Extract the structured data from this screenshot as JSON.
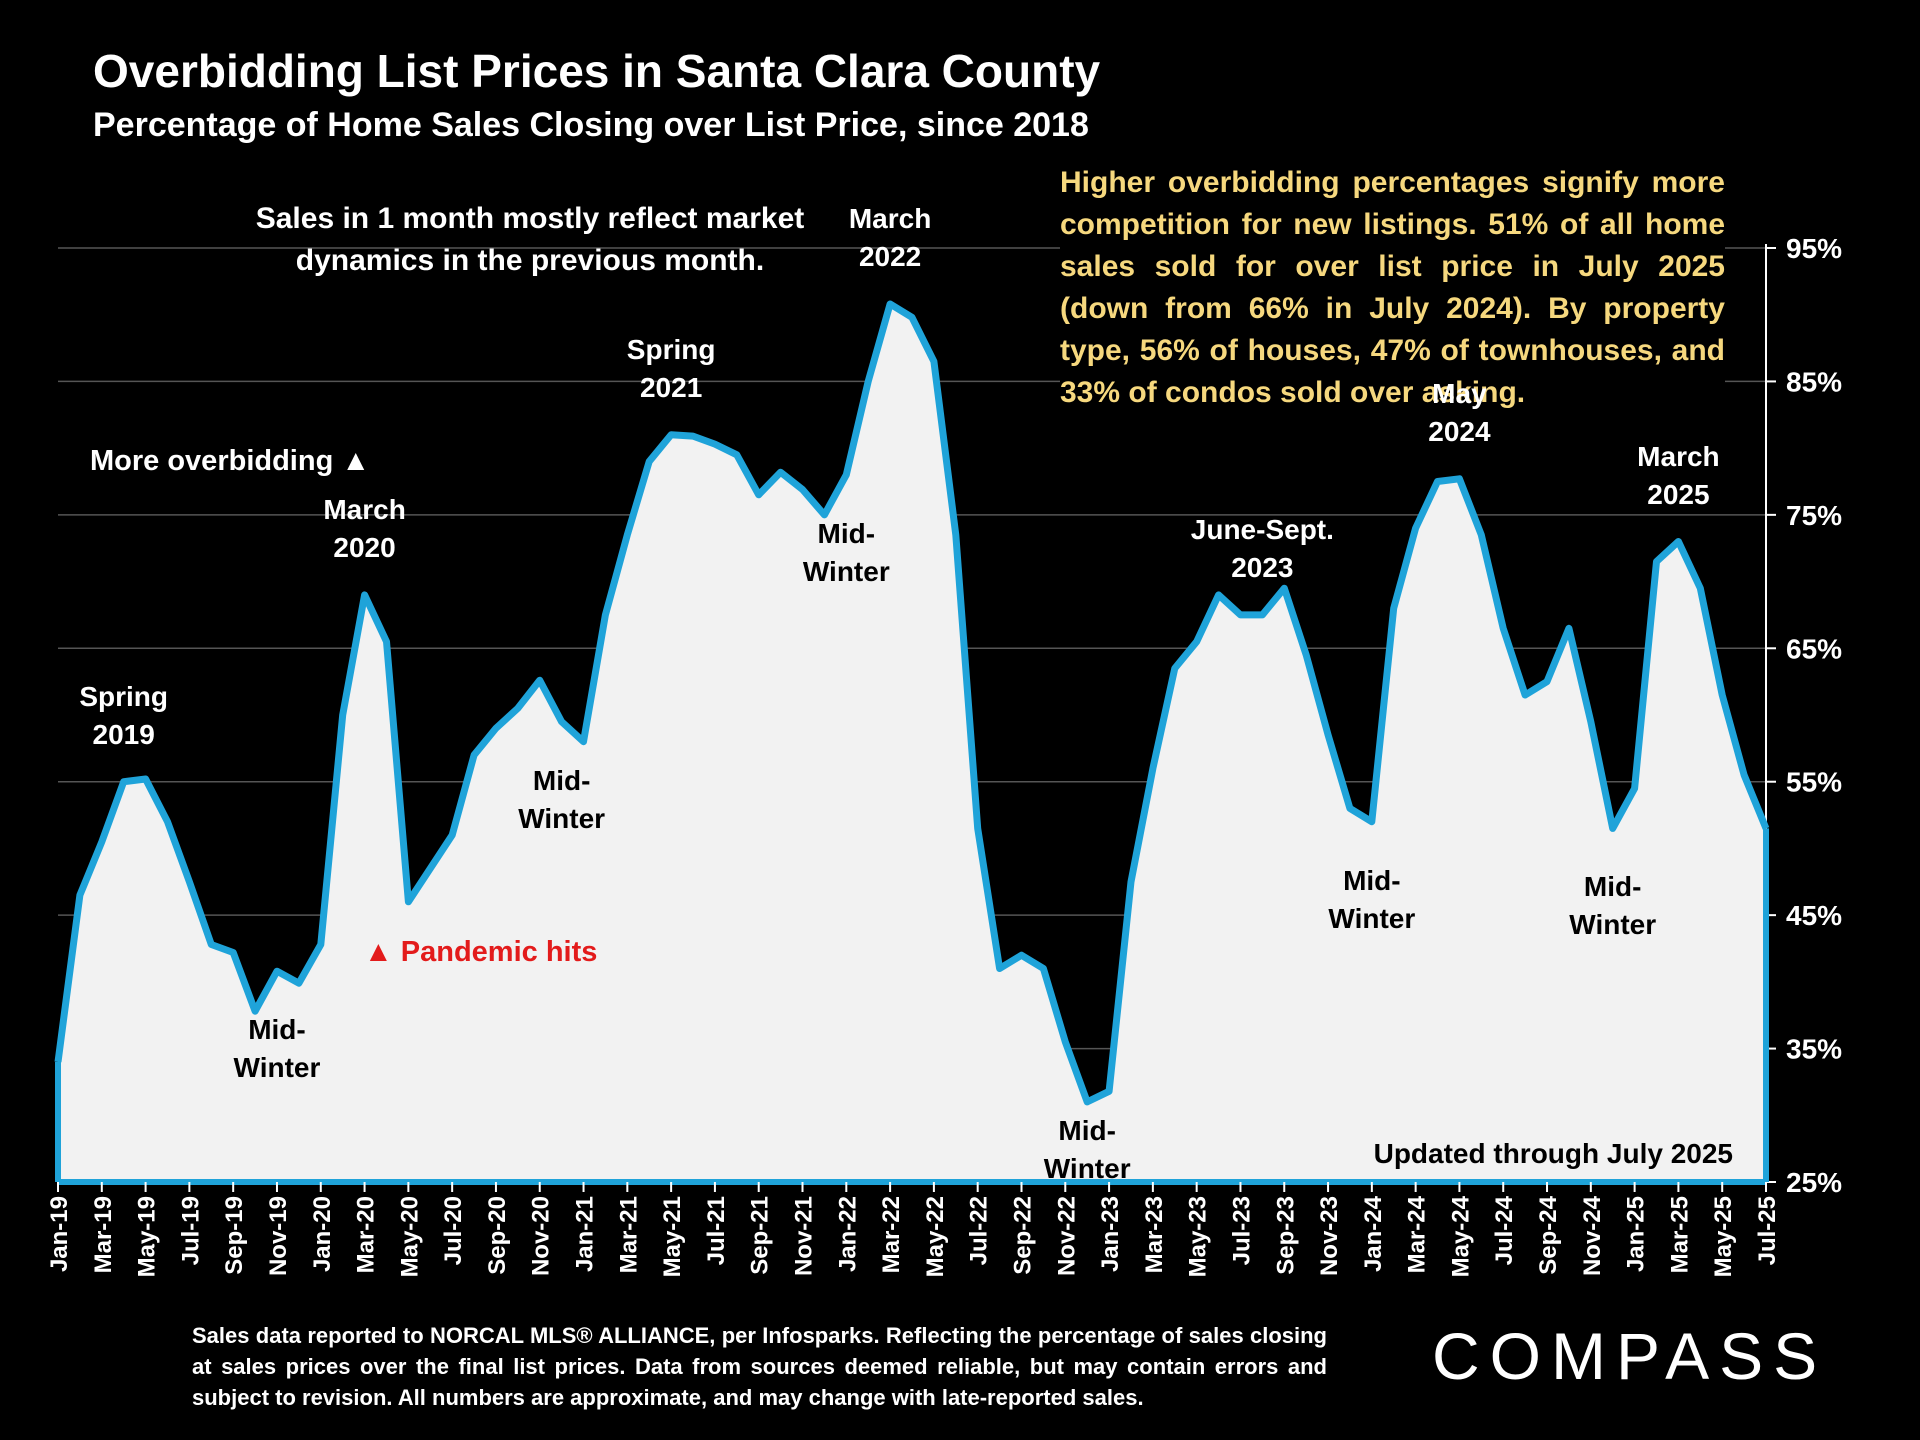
{
  "title": "Overbidding List Prices in Santa Clara County",
  "subtitle": "Percentage of Home Sales Closing over List Price, since 2018",
  "note_left": "Sales in 1 month mostly reflect market dynamics in the previous month.",
  "note_right": "Higher overbidding percentages signify more competition for new listings. 51% of all home sales sold for over list price in July 2025 (down from 66% in July 2024). By property type, 56% of houses, 47% of townhouses, and 33% of condos sold over asking.",
  "more_overbidding": "More overbidding ▲",
  "pandemic_label": "▲ Pandemic hits",
  "updated": "Updated through July 2025",
  "footnote": "Sales data reported to NORCAL MLS® ALLIANCE, per Infosparks. Reflecting the percentage of sales closing at sales prices over the final list prices. Data from sources deemed reliable, but may contain errors and subject to revision. All numbers are approximate, and may change with late-reported sales.",
  "logo": "COMPASS",
  "colors": {
    "line": "#1fa3d9",
    "fill": "#f2f2f2",
    "note": "#f6d87e",
    "pandemic": "#e31b1b",
    "grid": "#555555"
  },
  "chart_data": {
    "type": "area",
    "title": "Overbidding List Prices in Santa Clara County",
    "subtitle": "Percentage of Home Sales Closing over List Price, since 2018",
    "x": [
      "Jan-19",
      "Feb-19",
      "Mar-19",
      "Apr-19",
      "May-19",
      "Jun-19",
      "Jul-19",
      "Aug-19",
      "Sep-19",
      "Oct-19",
      "Nov-19",
      "Dec-19",
      "Jan-20",
      "Feb-20",
      "Mar-20",
      "Apr-20",
      "May-20",
      "Jun-20",
      "Jul-20",
      "Aug-20",
      "Sep-20",
      "Oct-20",
      "Nov-20",
      "Dec-20",
      "Jan-21",
      "Feb-21",
      "Mar-21",
      "Apr-21",
      "May-21",
      "Jun-21",
      "Jul-21",
      "Aug-21",
      "Sep-21",
      "Oct-21",
      "Nov-21",
      "Dec-21",
      "Jan-22",
      "Feb-22",
      "Mar-22",
      "Apr-22",
      "May-22",
      "Jun-22",
      "Jul-22",
      "Aug-22",
      "Sep-22",
      "Oct-22",
      "Nov-22",
      "Dec-22",
      "Jan-23",
      "Feb-23",
      "Mar-23",
      "Apr-23",
      "May-23",
      "Jun-23",
      "Jul-23",
      "Aug-23",
      "Sep-23",
      "Oct-23",
      "Nov-23",
      "Dec-23",
      "Jan-24",
      "Feb-24",
      "Mar-24",
      "Apr-24",
      "May-24",
      "Jun-24",
      "Jul-24",
      "Aug-24",
      "Sep-24",
      "Oct-24",
      "Nov-24",
      "Dec-24",
      "Jan-25",
      "Feb-25",
      "Mar-25",
      "Apr-25",
      "May-25",
      "Jun-25",
      "Jul-25"
    ],
    "series": [
      {
        "values": [
          34,
          46.5,
          50.5,
          55,
          55.2,
          52,
          47.5,
          42.8,
          42.2,
          37.8,
          40.8,
          39.9,
          42.8,
          60,
          69,
          65.5,
          46,
          48.5,
          51,
          57,
          59,
          60.5,
          62.6,
          59.5,
          58,
          67.5,
          73.5,
          79,
          81,
          80.9,
          80.3,
          79.5,
          76.5,
          78.2,
          76.9,
          75,
          78,
          85,
          90.8,
          89.8,
          86.5,
          73.5,
          51.5,
          41,
          42,
          41,
          35.5,
          31,
          31.8,
          47.5,
          56,
          63.5,
          65.5,
          69,
          67.5,
          67.5,
          69.5,
          64.5,
          58.5,
          53,
          52,
          68,
          74,
          77.5,
          77.7,
          73.5,
          66.5,
          61.5,
          62.5,
          66.5,
          59.5,
          51.5,
          54.5,
          71.5,
          73,
          69.5,
          61.5,
          55.5,
          51.5
        ]
      }
    ],
    "xticks": [
      "Jan-19",
      "Mar-19",
      "May-19",
      "Jul-19",
      "Sep-19",
      "Nov-19",
      "Jan-20",
      "Mar-20",
      "May-20",
      "Jul-20",
      "Sep-20",
      "Nov-20",
      "Jan-21",
      "Mar-21",
      "May-21",
      "Jul-21",
      "Sep-21",
      "Nov-21",
      "Jan-22",
      "Mar-22",
      "May-22",
      "Jul-22",
      "Sep-22",
      "Nov-22",
      "Jan-23",
      "Mar-23",
      "May-23",
      "Jul-23",
      "Sep-23",
      "Nov-23",
      "Jan-24",
      "Mar-24",
      "May-24",
      "Jul-24",
      "Sep-24",
      "Nov-24",
      "Jan-25",
      "Mar-25",
      "May-25",
      "Jul-25"
    ],
    "yticks": [
      25,
      35,
      45,
      55,
      65,
      75,
      85,
      95
    ],
    "ytick_labels": [
      "25%",
      "35%",
      "45%",
      "55%",
      "65%",
      "75%",
      "85%",
      "95%"
    ],
    "ylim": [
      25,
      99
    ],
    "grid": true,
    "annotations": [
      {
        "text": "Spring\n2019",
        "x": "Apr-19",
        "tone": "light"
      },
      {
        "text": "Mid-\nWinter",
        "x": "Nov-19",
        "tone": "dark"
      },
      {
        "text": "March\n2020",
        "x": "Mar-20",
        "tone": "light"
      },
      {
        "text": "Mid-\nWinter",
        "x": "Dec-20",
        "tone": "dark"
      },
      {
        "text": "Spring\n2021",
        "x": "May-21",
        "tone": "light"
      },
      {
        "text": "Mid-\nWinter",
        "x": "Jan-22",
        "tone": "dark"
      },
      {
        "text": "March\n2022",
        "x": "Mar-22",
        "tone": "light"
      },
      {
        "text": "Mid-\nWinter",
        "x": "Dec-22",
        "tone": "dark"
      },
      {
        "text": "June-Sept.\n2023",
        "x": "Aug-23",
        "tone": "light"
      },
      {
        "text": "Mid-\nWinter",
        "x": "Jan-24",
        "tone": "dark"
      },
      {
        "text": "May\n2024",
        "x": "May-24",
        "tone": "light"
      },
      {
        "text": "Mid-\nWinter",
        "x": "Dec-24",
        "tone": "dark"
      },
      {
        "text": "March\n2025",
        "x": "Mar-25",
        "tone": "light"
      }
    ]
  }
}
